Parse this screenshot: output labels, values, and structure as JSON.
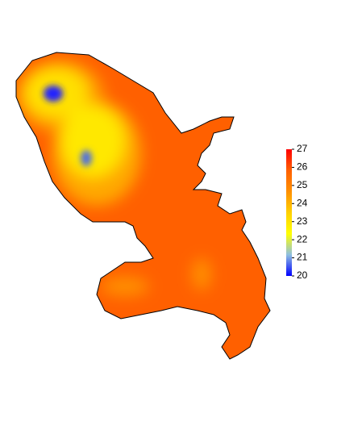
{
  "colorbar": {
    "range": [
      20,
      27
    ],
    "ticks": [
      20,
      21,
      22,
      23,
      24,
      25,
      26,
      27
    ],
    "colors": [
      "#0000ff",
      "#8fbfe0",
      "#ffff00",
      "#ffd000",
      "#ff9000",
      "#ff6000",
      "#ff0000"
    ]
  }
}
